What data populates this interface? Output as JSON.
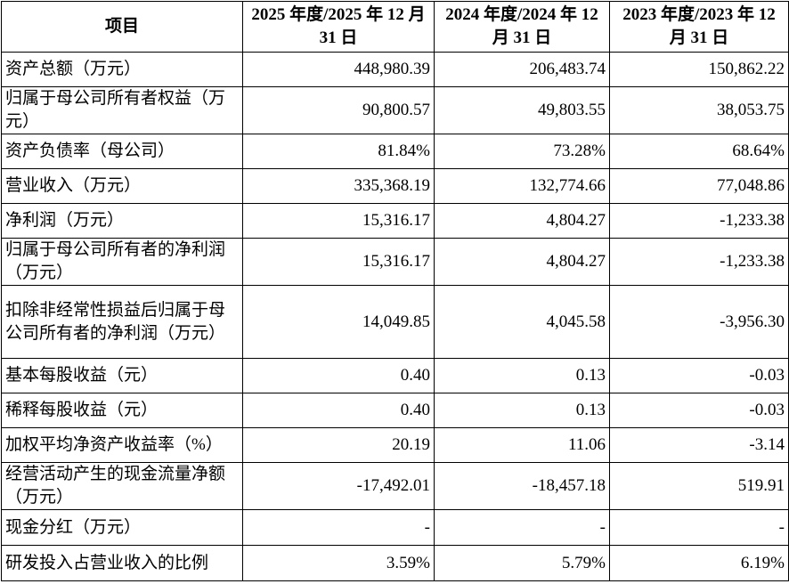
{
  "table": {
    "header": [
      "项目",
      "2025 年度/2025 年 12 月 31 日",
      "2024 年度/2024 年 12 月 31 日",
      "2023 年度/2023 年 12 月 31 日"
    ],
    "rows": [
      [
        "资产总额（万元）",
        "448,980.39",
        "206,483.74",
        "150,862.22"
      ],
      [
        "归属于母公司所有者权益（万元）",
        "90,800.57",
        "49,803.55",
        "38,053.75"
      ],
      [
        "资产负债率（母公司）",
        "81.84%",
        "73.28%",
        "68.64%"
      ],
      [
        "营业收入（万元）",
        "335,368.19",
        "132,774.66",
        "77,048.86"
      ],
      [
        "净利润（万元）",
        "15,316.17",
        "4,804.27",
        "-1,233.38"
      ],
      [
        "归属于母公司所有者的净利润（万元）",
        "15,316.17",
        "4,804.27",
        "-1,233.38"
      ],
      [
        "扣除非经常性损益后归属于母公司所有者的净利润（万元）",
        "14,049.85",
        "4,045.58",
        "-3,956.30"
      ],
      [
        "基本每股收益（元）",
        "0.40",
        "0.13",
        "-0.03"
      ],
      [
        "稀释每股收益（元）",
        "0.40",
        "0.13",
        "-0.03"
      ],
      [
        "加权平均净资产收益率（%）",
        "20.19",
        "11.06",
        "-3.14"
      ],
      [
        "经营活动产生的现金流量净额（万元）",
        "-17,492.01",
        "-18,457.18",
        "519.91"
      ],
      [
        "现金分红（万元）",
        "-",
        "-",
        "-"
      ],
      [
        "研发投入占营业收入的比例",
        "3.59%",
        "5.79%",
        "6.19%"
      ]
    ]
  }
}
